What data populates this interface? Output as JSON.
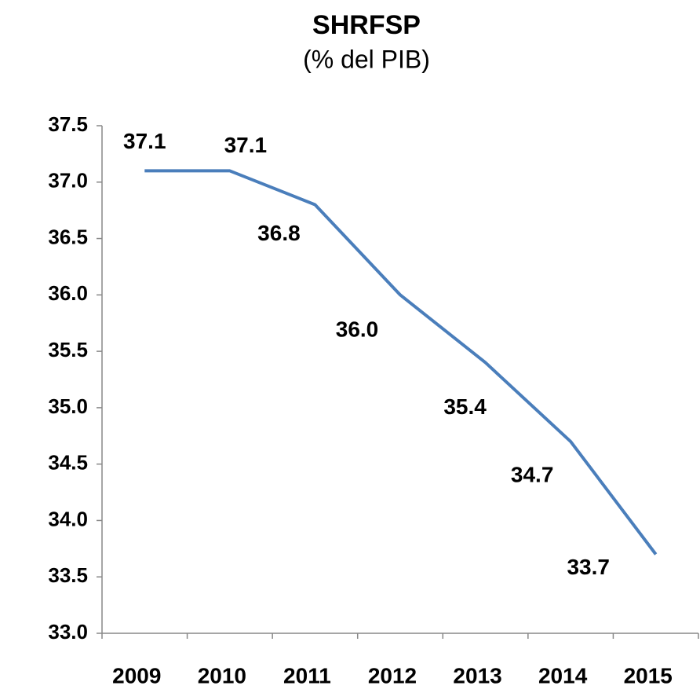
{
  "chart_data": {
    "type": "line",
    "title": "SHRFSP",
    "subtitle": "(% del PIB)",
    "categories": [
      "2009",
      "2010",
      "2011",
      "2012",
      "2013",
      "2014",
      "2015"
    ],
    "values": [
      37.1,
      37.1,
      36.8,
      36.0,
      35.4,
      34.7,
      33.7
    ],
    "value_labels": [
      "37.1",
      "37.1",
      "36.8",
      "36.0",
      "35.4",
      "34.7",
      "33.7"
    ],
    "color": "#4a7ebb",
    "ylim": [
      33,
      37.5
    ],
    "yticks": [
      {
        "value": 33,
        "label": "33.0"
      },
      33.5,
      {
        "value": 34,
        "label": "34.0"
      },
      34.5,
      {
        "value": 35,
        "label": "35.0"
      },
      35.5,
      {
        "value": 36,
        "label": "36.0"
      },
      36.5,
      {
        "value": 37,
        "label": "37.0"
      },
      37.5
    ],
    "grid": false
  }
}
